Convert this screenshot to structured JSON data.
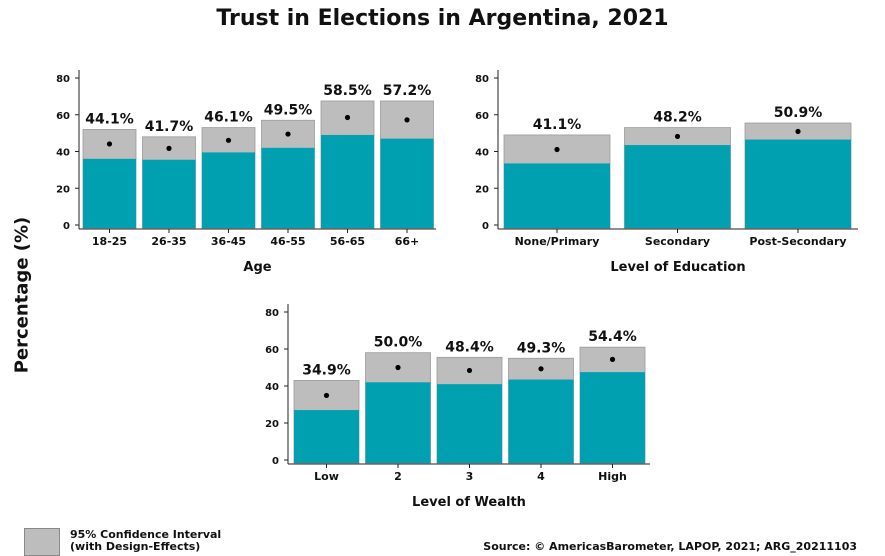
{
  "colors": {
    "ci": "#bdbdbd",
    "ci_border": "#9a9a9a",
    "bar": "#00a0b0",
    "point": "#000000"
  },
  "legend": {
    "line1": "95% Confidence Interval",
    "line2": "(with Design-Effects)"
  },
  "source": "Source: © AmericasBarometer, LAPOP, 2021; ARG_20211103",
  "chart_data": {
    "title": "Trust in Elections in Argentina, 2021",
    "ylabel": "Percentage (%)",
    "panels": [
      {
        "type": "bar",
        "xlabel": "Age",
        "ylim": [
          0,
          80
        ],
        "yticks": [
          "0",
          "20",
          "40",
          "60",
          "80"
        ],
        "categories": [
          "18-25",
          "26-35",
          "36-45",
          "46-55",
          "56-65",
          "66+"
        ],
        "values": [
          44.1,
          41.7,
          46.1,
          49.5,
          58.5,
          57.2
        ],
        "labels": [
          "44.1%",
          "41.7%",
          "46.1%",
          "49.5%",
          "58.5%",
          "57.2%"
        ],
        "ci_lower": [
          36,
          35.5,
          39.5,
          42,
          49,
          47
        ],
        "ci_upper": [
          52,
          48,
          53,
          57,
          67.5,
          67.5
        ]
      },
      {
        "type": "bar",
        "xlabel": "Level of Education",
        "ylim": [
          0,
          80
        ],
        "yticks": [
          "0",
          "20",
          "40",
          "60",
          "80"
        ],
        "categories": [
          "None/Primary",
          "Secondary",
          "Post-Secondary"
        ],
        "values": [
          41.1,
          48.2,
          50.9
        ],
        "labels": [
          "41.1%",
          "48.2%",
          "50.9%"
        ],
        "ci_lower": [
          33.5,
          43.5,
          46.5
        ],
        "ci_upper": [
          49,
          53,
          55.5
        ]
      },
      {
        "type": "bar",
        "xlabel": "Level of Wealth",
        "ylim": [
          0,
          80
        ],
        "yticks": [
          "0",
          "20",
          "40",
          "60",
          "80"
        ],
        "categories": [
          "Low",
          "2",
          "3",
          "4",
          "High"
        ],
        "values": [
          34.9,
          50.0,
          48.4,
          49.3,
          54.4
        ],
        "labels": [
          "34.9%",
          "50.0%",
          "48.4%",
          "49.3%",
          "54.4%"
        ],
        "ci_lower": [
          27,
          42,
          41,
          43.5,
          47.5
        ],
        "ci_upper": [
          43,
          58,
          55.5,
          55,
          61
        ]
      }
    ]
  }
}
